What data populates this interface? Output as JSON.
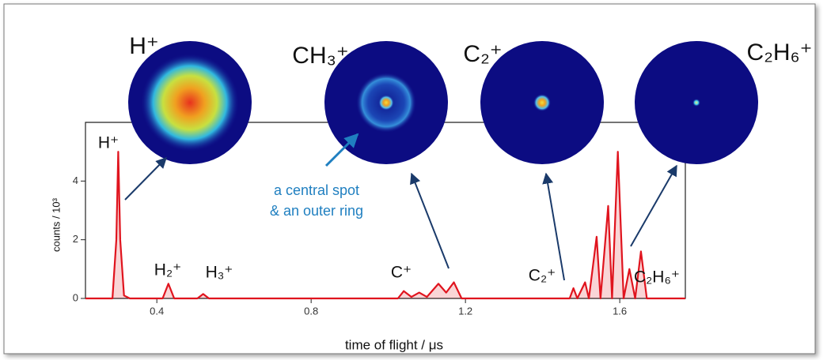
{
  "chart_data": {
    "type": "line",
    "x_label": "time of flight / μs",
    "y_label": "counts / 10³",
    "x": [
      0.215,
      0.285,
      0.295,
      0.3,
      0.305,
      0.315,
      0.33,
      0.415,
      0.43,
      0.445,
      0.505,
      0.52,
      0.535,
      1.025,
      1.04,
      1.06,
      1.08,
      1.1,
      1.13,
      1.15,
      1.17,
      1.19,
      1.47,
      1.48,
      1.49,
      1.51,
      1.52,
      1.54,
      1.55,
      1.57,
      1.58,
      1.595,
      1.61,
      1.625,
      1.64,
      1.655,
      1.67,
      1.77
    ],
    "values": [
      0,
      0,
      2.0,
      5.0,
      2.0,
      0.1,
      0,
      0,
      0.5,
      0,
      0,
      0.15,
      0,
      0,
      0.25,
      0.05,
      0.2,
      0.05,
      0.5,
      0.2,
      0.55,
      0,
      0,
      0.35,
      0,
      0.55,
      0,
      2.1,
      0,
      3.15,
      0,
      5.0,
      0,
      1.0,
      0,
      1.6,
      0,
      0
    ],
    "color": "#e0141e",
    "xlim": [
      0.215,
      1.77
    ],
    "ylim": [
      0,
      6
    ],
    "xticks": [
      0.4,
      0.8,
      1.2,
      1.6
    ],
    "yticks": [
      0,
      2,
      4
    ],
    "peak_labels": [
      "H⁺",
      "H₂⁺",
      "H₃⁺",
      "C⁺",
      "C₂⁺",
      "C₂H₆⁺"
    ],
    "image_labels": [
      "H⁺",
      "CH₃⁺",
      "C₂⁺",
      "C₂H₆⁺"
    ],
    "annotation": [
      "a central spot",
      "& an outer ring"
    ]
  }
}
